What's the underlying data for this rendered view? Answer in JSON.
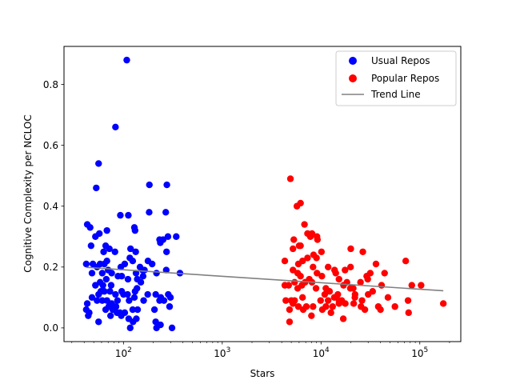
{
  "chart_data": {
    "type": "scatter",
    "xlabel": "Stars",
    "ylabel": "Cognitive Complexity per NCLOC",
    "xscale": "log",
    "xlim": [
      25,
      260000
    ],
    "ylim": [
      -0.045,
      0.925
    ],
    "x_ticks": [
      {
        "value": 100,
        "base": "10",
        "exp": "2"
      },
      {
        "value": 1000,
        "base": "10",
        "exp": "3"
      },
      {
        "value": 10000,
        "base": "10",
        "exp": "4"
      },
      {
        "value": 100000,
        "base": "10",
        "exp": "5"
      }
    ],
    "y_ticks": [
      {
        "value": 0.0,
        "label": "0.0"
      },
      {
        "value": 0.2,
        "label": "0.2"
      },
      {
        "value": 0.4,
        "label": "0.4"
      },
      {
        "value": 0.6,
        "label": "0.6"
      },
      {
        "value": 0.8,
        "label": "0.8"
      }
    ],
    "legend_position": "top-right",
    "series": [
      {
        "name": "Usual Repos",
        "color": "#0000ff",
        "points": [
          [
            108,
            0.88
          ],
          [
            83,
            0.66
          ],
          [
            56,
            0.54
          ],
          [
            53,
            0.46
          ],
          [
            183,
            0.47
          ],
          [
            275,
            0.47
          ],
          [
            43,
            0.34
          ],
          [
            46,
            0.33
          ],
          [
            52,
            0.3
          ],
          [
            57,
            0.31
          ],
          [
            68,
            0.32
          ],
          [
            129,
            0.33
          ],
          [
            131,
            0.32
          ],
          [
            93,
            0.37
          ],
          [
            112,
            0.37
          ],
          [
            182,
            0.38
          ],
          [
            268,
            0.38
          ],
          [
            342,
            0.3
          ],
          [
            282,
            0.3
          ],
          [
            232,
            0.29
          ],
          [
            252,
            0.29
          ],
          [
            236,
            0.28
          ],
          [
            47,
            0.27
          ],
          [
            66,
            0.27
          ],
          [
            72,
            0.26
          ],
          [
            63,
            0.25
          ],
          [
            82,
            0.25
          ],
          [
            118,
            0.26
          ],
          [
            133,
            0.25
          ],
          [
            177,
            0.22
          ],
          [
            195,
            0.21
          ],
          [
            273,
            0.25
          ],
          [
            116,
            0.23
          ],
          [
            124,
            0.22
          ],
          [
            49,
            0.21
          ],
          [
            42,
            0.21
          ],
          [
            58,
            0.21
          ],
          [
            64,
            0.21
          ],
          [
            68,
            0.22
          ],
          [
            54,
            0.2
          ],
          [
            94,
            0.2
          ],
          [
            103,
            0.21
          ],
          [
            147,
            0.2
          ],
          [
            156,
            0.19
          ],
          [
            163,
            0.19
          ],
          [
            271,
            0.19
          ],
          [
            373,
            0.18
          ],
          [
            216,
            0.18
          ],
          [
            48,
            0.18
          ],
          [
            61,
            0.18
          ],
          [
            70,
            0.19
          ],
          [
            76,
            0.18
          ],
          [
            88,
            0.17
          ],
          [
            111,
            0.16
          ],
          [
            134,
            0.18
          ],
          [
            138,
            0.16
          ],
          [
            150,
            0.15
          ],
          [
            158,
            0.17
          ],
          [
            96,
            0.17
          ],
          [
            67,
            0.16
          ],
          [
            52,
            0.14
          ],
          [
            58,
            0.15
          ],
          [
            62,
            0.14
          ],
          [
            75,
            0.14
          ],
          [
            73,
            0.12
          ],
          [
            59,
            0.12
          ],
          [
            56,
            0.11
          ],
          [
            64,
            0.12
          ],
          [
            83,
            0.11
          ],
          [
            96,
            0.12
          ],
          [
            110,
            0.11
          ],
          [
            131,
            0.12
          ],
          [
            137,
            0.13
          ],
          [
            176,
            0.11
          ],
          [
            212,
            0.11
          ],
          [
            239,
            0.1
          ],
          [
            284,
            0.11
          ],
          [
            299,
            0.1
          ],
          [
            257,
            0.09
          ],
          [
            232,
            0.09
          ],
          [
            160,
            0.09
          ],
          [
            129,
            0.1
          ],
          [
            114,
            0.09
          ],
          [
            100,
            0.11
          ],
          [
            87,
            0.09
          ],
          [
            76,
            0.08
          ],
          [
            68,
            0.09
          ],
          [
            61,
            0.09
          ],
          [
            54,
            0.09
          ],
          [
            48,
            0.1
          ],
          [
            43,
            0.08
          ],
          [
            42,
            0.06
          ],
          [
            45,
            0.05
          ],
          [
            44,
            0.04
          ],
          [
            71,
            0.07
          ],
          [
            78,
            0.06
          ],
          [
            84,
            0.07
          ],
          [
            95,
            0.04
          ],
          [
            103,
            0.05
          ],
          [
            124,
            0.06
          ],
          [
            139,
            0.06
          ],
          [
            206,
            0.06
          ],
          [
            293,
            0.07
          ],
          [
            86,
            0.05
          ],
          [
            92,
            0.05
          ],
          [
            56,
            0.02
          ],
          [
            113,
            0.03
          ],
          [
            125,
            0.02
          ],
          [
            135,
            0.03
          ],
          [
            117,
            0.0
          ],
          [
            212,
            0.02
          ],
          [
            216,
            0.0
          ],
          [
            237,
            0.01
          ],
          [
            310,
            0.0
          ],
          [
            74,
            0.04
          ],
          [
            66,
            0.06
          ]
        ]
      },
      {
        "name": "Popular Repos",
        "color": "#ff0000",
        "points": [
          [
            4900,
            0.49
          ],
          [
            6200,
            0.41
          ],
          [
            5700,
            0.4
          ],
          [
            6800,
            0.34
          ],
          [
            7300,
            0.31
          ],
          [
            8100,
            0.31
          ],
          [
            7800,
            0.3
          ],
          [
            9200,
            0.29
          ],
          [
            9100,
            0.3
          ],
          [
            5300,
            0.29
          ],
          [
            6000,
            0.27
          ],
          [
            6200,
            0.27
          ],
          [
            5200,
            0.26
          ],
          [
            20000,
            0.26
          ],
          [
            26500,
            0.25
          ],
          [
            10100,
            0.25
          ],
          [
            8400,
            0.24
          ],
          [
            7300,
            0.23
          ],
          [
            9000,
            0.23
          ],
          [
            4300,
            0.22
          ],
          [
            5900,
            0.21
          ],
          [
            6500,
            0.22
          ],
          [
            8300,
            0.2
          ],
          [
            11800,
            0.2
          ],
          [
            17500,
            0.19
          ],
          [
            19900,
            0.2
          ],
          [
            36000,
            0.21
          ],
          [
            72000,
            0.22
          ],
          [
            5200,
            0.19
          ],
          [
            5800,
            0.18
          ],
          [
            9100,
            0.18
          ],
          [
            6200,
            0.17
          ],
          [
            7600,
            0.16
          ],
          [
            13700,
            0.19
          ],
          [
            14100,
            0.18
          ],
          [
            10200,
            0.17
          ],
          [
            29000,
            0.17
          ],
          [
            31500,
            0.18
          ],
          [
            44000,
            0.18
          ],
          [
            15200,
            0.16
          ],
          [
            5400,
            0.15
          ],
          [
            4700,
            0.14
          ],
          [
            4300,
            0.14
          ],
          [
            6900,
            0.15
          ],
          [
            6400,
            0.14
          ],
          [
            8100,
            0.15
          ],
          [
            18300,
            0.15
          ],
          [
            21200,
            0.13
          ],
          [
            25100,
            0.15
          ],
          [
            29700,
            0.16
          ],
          [
            41000,
            0.14
          ],
          [
            83000,
            0.14
          ],
          [
            103000,
            0.14
          ],
          [
            16900,
            0.14
          ],
          [
            19800,
            0.13
          ],
          [
            11200,
            0.13
          ],
          [
            5800,
            0.13
          ],
          [
            8900,
            0.13
          ],
          [
            12200,
            0.12
          ],
          [
            10900,
            0.11
          ],
          [
            14800,
            0.11
          ],
          [
            22100,
            0.11
          ],
          [
            33300,
            0.12
          ],
          [
            30000,
            0.11
          ],
          [
            47600,
            0.1
          ],
          [
            13600,
            0.1
          ],
          [
            15200,
            0.09
          ],
          [
            6500,
            0.1
          ],
          [
            5400,
            0.09
          ],
          [
            5000,
            0.09
          ],
          [
            4400,
            0.09
          ],
          [
            9900,
            0.09
          ],
          [
            11800,
            0.09
          ],
          [
            16200,
            0.09
          ],
          [
            22000,
            0.1
          ],
          [
            26000,
            0.09
          ],
          [
            25400,
            0.07
          ],
          [
            21400,
            0.08
          ],
          [
            17600,
            0.08
          ],
          [
            15200,
            0.08
          ],
          [
            13100,
            0.07
          ],
          [
            11200,
            0.07
          ],
          [
            8300,
            0.07
          ],
          [
            7100,
            0.07
          ],
          [
            5900,
            0.07
          ],
          [
            5200,
            0.08
          ],
          [
            4800,
            0.06
          ],
          [
            6600,
            0.06
          ],
          [
            10300,
            0.06
          ],
          [
            27800,
            0.06
          ],
          [
            38000,
            0.07
          ],
          [
            56000,
            0.07
          ],
          [
            76000,
            0.09
          ],
          [
            173000,
            0.08
          ],
          [
            40000,
            0.06
          ],
          [
            77000,
            0.05
          ],
          [
            8000,
            0.04
          ],
          [
            12600,
            0.05
          ],
          [
            16800,
            0.03
          ],
          [
            4800,
            0.02
          ]
        ]
      }
    ],
    "trend_line": {
      "name": "Trend Line",
      "color": "#808080",
      "points": [
        [
          42,
          0.199
        ],
        [
          173000,
          0.122
        ]
      ]
    }
  }
}
